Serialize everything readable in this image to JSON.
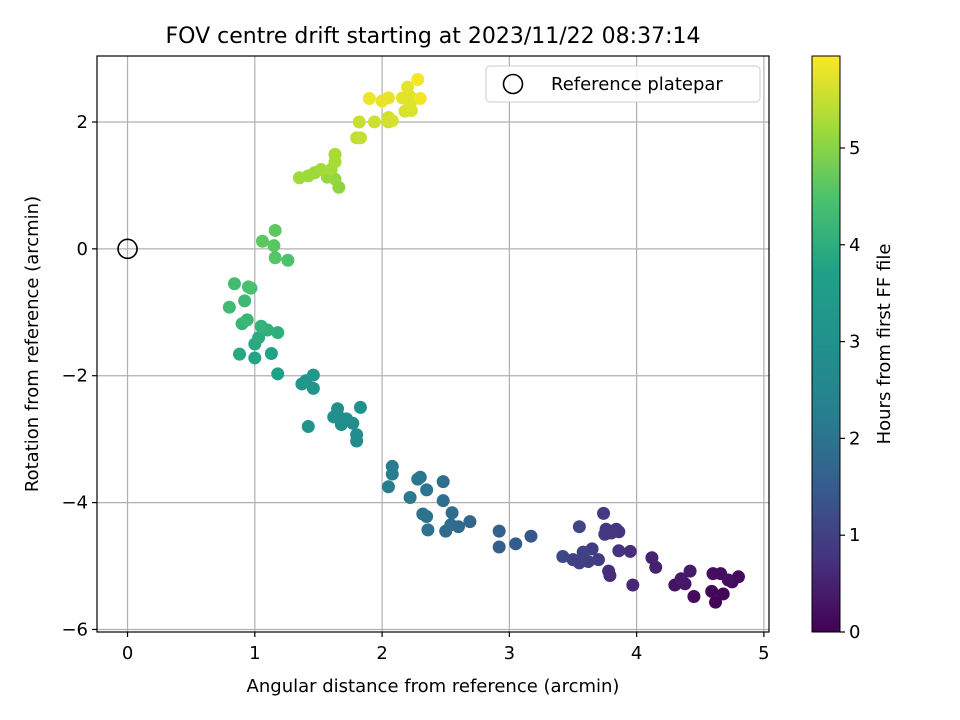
{
  "chart_data": {
    "type": "scatter",
    "title": "FOV centre drift starting at 2023/11/22 08:37:14",
    "xlabel": "Angular distance from reference (arcmin)",
    "ylabel": "Rotation from reference (arcmin)",
    "xlim": [
      -0.24,
      5.04
    ],
    "ylim": [
      -6.04,
      3.04
    ],
    "xticks": [
      0,
      1,
      2,
      3,
      4,
      5
    ],
    "yticks": [
      -6,
      -4,
      -2,
      0,
      2
    ],
    "grid": true,
    "legend": {
      "position": "top-right",
      "entries": [
        "Reference platepar"
      ]
    },
    "reference_point": {
      "label": "Reference platepar",
      "x": 0,
      "y": 0
    },
    "colorbar": {
      "label": "Hours from first FF file",
      "colormap": "viridis",
      "range": [
        0,
        5.95
      ],
      "ticks": [
        0,
        1,
        2,
        3,
        4,
        5
      ]
    },
    "points": [
      {
        "x": 4.62,
        "y": -5.57,
        "h": 0.05
      },
      {
        "x": 4.68,
        "y": -5.44,
        "h": 0.08
      },
      {
        "x": 4.59,
        "y": -5.4,
        "h": 0.1
      },
      {
        "x": 4.45,
        "y": -5.48,
        "h": 0.15
      },
      {
        "x": 4.75,
        "y": -5.25,
        "h": 0.12
      },
      {
        "x": 4.8,
        "y": -5.17,
        "h": 0.14
      },
      {
        "x": 4.66,
        "y": -5.12,
        "h": 0.18
      },
      {
        "x": 4.6,
        "y": -5.12,
        "h": 0.2
      },
      {
        "x": 4.72,
        "y": -5.22,
        "h": 0.22
      },
      {
        "x": 4.3,
        "y": -5.3,
        "h": 0.28
      },
      {
        "x": 4.38,
        "y": -5.28,
        "h": 0.32
      },
      {
        "x": 4.35,
        "y": -5.2,
        "h": 0.35
      },
      {
        "x": 4.42,
        "y": -5.08,
        "h": 0.4
      },
      {
        "x": 4.15,
        "y": -5.02,
        "h": 0.48
      },
      {
        "x": 4.12,
        "y": -4.87,
        "h": 0.52
      },
      {
        "x": 3.97,
        "y": -5.3,
        "h": 0.6
      },
      {
        "x": 3.79,
        "y": -5.15,
        "h": 0.65
      },
      {
        "x": 3.78,
        "y": -5.08,
        "h": 0.68
      },
      {
        "x": 3.95,
        "y": -4.77,
        "h": 0.72
      },
      {
        "x": 3.86,
        "y": -4.76,
        "h": 0.74
      },
      {
        "x": 3.86,
        "y": -4.46,
        "h": 0.78
      },
      {
        "x": 3.84,
        "y": -4.42,
        "h": 0.8
      },
      {
        "x": 3.76,
        "y": -4.42,
        "h": 0.82
      },
      {
        "x": 3.8,
        "y": -4.48,
        "h": 0.84
      },
      {
        "x": 3.75,
        "y": -4.5,
        "h": 0.86
      },
      {
        "x": 3.74,
        "y": -4.17,
        "h": 0.9
      },
      {
        "x": 3.7,
        "y": -4.9,
        "h": 0.92
      },
      {
        "x": 3.65,
        "y": -4.73,
        "h": 0.94
      },
      {
        "x": 3.62,
        "y": -4.93,
        "h": 0.96
      },
      {
        "x": 3.58,
        "y": -4.88,
        "h": 0.98
      },
      {
        "x": 3.55,
        "y": -4.95,
        "h": 1.0
      },
      {
        "x": 3.5,
        "y": -4.9,
        "h": 1.02
      },
      {
        "x": 3.58,
        "y": -4.78,
        "h": 1.05
      },
      {
        "x": 3.55,
        "y": -4.38,
        "h": 1.1
      },
      {
        "x": 3.42,
        "y": -4.85,
        "h": 1.15
      },
      {
        "x": 3.17,
        "y": -4.53,
        "h": 1.4
      },
      {
        "x": 3.05,
        "y": -4.65,
        "h": 1.48
      },
      {
        "x": 2.92,
        "y": -4.7,
        "h": 1.55
      },
      {
        "x": 2.92,
        "y": -4.45,
        "h": 1.6
      },
      {
        "x": 2.69,
        "y": -4.3,
        "h": 1.7
      },
      {
        "x": 2.6,
        "y": -4.38,
        "h": 1.75
      },
      {
        "x": 2.5,
        "y": -4.45,
        "h": 1.8
      },
      {
        "x": 2.54,
        "y": -4.35,
        "h": 1.82
      },
      {
        "x": 2.55,
        "y": -4.16,
        "h": 1.85
      },
      {
        "x": 2.48,
        "y": -3.97,
        "h": 1.88
      },
      {
        "x": 2.48,
        "y": -3.67,
        "h": 1.9
      },
      {
        "x": 2.36,
        "y": -4.43,
        "h": 1.95
      },
      {
        "x": 2.35,
        "y": -4.22,
        "h": 1.98
      },
      {
        "x": 2.32,
        "y": -4.18,
        "h": 2.0
      },
      {
        "x": 2.35,
        "y": -3.8,
        "h": 2.02
      },
      {
        "x": 2.3,
        "y": -3.6,
        "h": 2.05
      },
      {
        "x": 2.28,
        "y": -3.63,
        "h": 2.08
      },
      {
        "x": 2.22,
        "y": -3.92,
        "h": 2.1
      },
      {
        "x": 2.08,
        "y": -3.43,
        "h": 2.15
      },
      {
        "x": 2.08,
        "y": -3.55,
        "h": 2.18
      },
      {
        "x": 2.05,
        "y": -3.75,
        "h": 2.2
      },
      {
        "x": 1.8,
        "y": -3.03,
        "h": 2.7
      },
      {
        "x": 1.8,
        "y": -2.93,
        "h": 2.75
      },
      {
        "x": 1.77,
        "y": -2.75,
        "h": 2.8
      },
      {
        "x": 1.68,
        "y": -2.77,
        "h": 2.85
      },
      {
        "x": 1.72,
        "y": -2.68,
        "h": 2.88
      },
      {
        "x": 1.65,
        "y": -2.62,
        "h": 2.9
      },
      {
        "x": 1.62,
        "y": -2.65,
        "h": 2.92
      },
      {
        "x": 1.65,
        "y": -2.52,
        "h": 2.95
      },
      {
        "x": 1.83,
        "y": -2.5,
        "h": 2.98
      },
      {
        "x": 1.42,
        "y": -2.8,
        "h": 3.05
      },
      {
        "x": 1.46,
        "y": -2.2,
        "h": 3.15
      },
      {
        "x": 1.4,
        "y": -2.08,
        "h": 3.2
      },
      {
        "x": 1.37,
        "y": -2.13,
        "h": 3.25
      },
      {
        "x": 1.46,
        "y": -1.99,
        "h": 3.3
      },
      {
        "x": 1.18,
        "y": -1.97,
        "h": 3.7
      },
      {
        "x": 1.13,
        "y": -1.65,
        "h": 3.75
      },
      {
        "x": 1.0,
        "y": -1.72,
        "h": 3.8
      },
      {
        "x": 0.88,
        "y": -1.66,
        "h": 3.85
      },
      {
        "x": 1.0,
        "y": -1.5,
        "h": 3.9
      },
      {
        "x": 1.03,
        "y": -1.4,
        "h": 3.95
      },
      {
        "x": 1.18,
        "y": -1.32,
        "h": 4.0
      },
      {
        "x": 1.1,
        "y": -1.28,
        "h": 4.05
      },
      {
        "x": 1.05,
        "y": -1.22,
        "h": 4.1
      },
      {
        "x": 0.9,
        "y": -1.18,
        "h": 4.15
      },
      {
        "x": 0.94,
        "y": -1.12,
        "h": 4.2
      },
      {
        "x": 0.92,
        "y": -0.82,
        "h": 4.25
      },
      {
        "x": 0.8,
        "y": -0.92,
        "h": 4.3
      },
      {
        "x": 0.84,
        "y": -0.55,
        "h": 4.35
      },
      {
        "x": 0.97,
        "y": -0.62,
        "h": 4.4
      },
      {
        "x": 0.95,
        "y": -0.6,
        "h": 4.45
      },
      {
        "x": 1.26,
        "y": -0.18,
        "h": 4.5
      },
      {
        "x": 1.16,
        "y": -0.14,
        "h": 4.55
      },
      {
        "x": 1.15,
        "y": 0.05,
        "h": 4.6
      },
      {
        "x": 1.06,
        "y": 0.12,
        "h": 4.62
      },
      {
        "x": 1.16,
        "y": 0.29,
        "h": 4.65
      },
      {
        "x": 1.66,
        "y": 0.97,
        "h": 5.05
      },
      {
        "x": 1.63,
        "y": 1.1,
        "h": 5.1
      },
      {
        "x": 1.57,
        "y": 1.13,
        "h": 5.12
      },
      {
        "x": 1.47,
        "y": 1.2,
        "h": 5.15
      },
      {
        "x": 1.42,
        "y": 1.15,
        "h": 5.18
      },
      {
        "x": 1.35,
        "y": 1.12,
        "h": 5.2
      },
      {
        "x": 1.52,
        "y": 1.25,
        "h": 5.22
      },
      {
        "x": 1.6,
        "y": 1.25,
        "h": 5.24
      },
      {
        "x": 1.63,
        "y": 1.37,
        "h": 5.26
      },
      {
        "x": 1.63,
        "y": 1.49,
        "h": 5.28
      },
      {
        "x": 1.8,
        "y": 1.75,
        "h": 5.45
      },
      {
        "x": 1.83,
        "y": 1.75,
        "h": 5.48
      },
      {
        "x": 1.82,
        "y": 2.0,
        "h": 5.52
      },
      {
        "x": 1.94,
        "y": 2.0,
        "h": 5.55
      },
      {
        "x": 2.05,
        "y": 2.07,
        "h": 5.58
      },
      {
        "x": 2.05,
        "y": 2.0,
        "h": 5.6
      },
      {
        "x": 2.08,
        "y": 2.02,
        "h": 5.62
      },
      {
        "x": 2.18,
        "y": 2.17,
        "h": 5.65
      },
      {
        "x": 2.23,
        "y": 2.18,
        "h": 5.68
      },
      {
        "x": 2.22,
        "y": 2.28,
        "h": 5.7
      },
      {
        "x": 2.22,
        "y": 2.4,
        "h": 5.72
      },
      {
        "x": 2.16,
        "y": 2.38,
        "h": 5.74
      },
      {
        "x": 2.2,
        "y": 2.55,
        "h": 5.76
      },
      {
        "x": 2.05,
        "y": 2.38,
        "h": 5.78
      },
      {
        "x": 2.0,
        "y": 2.33,
        "h": 5.8
      },
      {
        "x": 1.9,
        "y": 2.37,
        "h": 5.82
      },
      {
        "x": 2.3,
        "y": 2.37,
        "h": 5.86
      },
      {
        "x": 2.28,
        "y": 2.67,
        "h": 5.9
      }
    ]
  }
}
